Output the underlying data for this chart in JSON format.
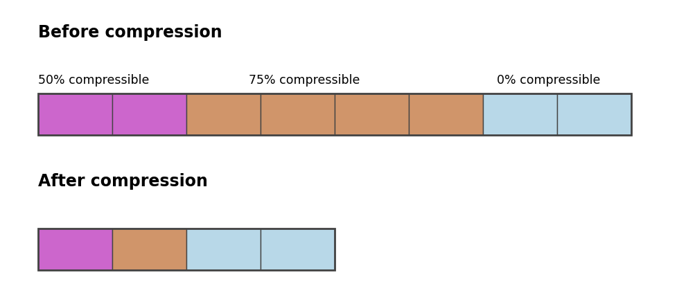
{
  "title_before": "Before compression",
  "title_after": "After compression",
  "label_50": "50% compressible",
  "label_75": "75% compressible",
  "label_0": "0% compressible",
  "color_purple": "#CC66CC",
  "color_orange": "#D0956A",
  "color_blue": "#B8D8E8",
  "edge_color": "#444444",
  "background_color": "#FFFFFF",
  "before_blocks": [
    "purple",
    "purple",
    "orange",
    "orange",
    "orange",
    "orange",
    "blue",
    "blue"
  ],
  "after_blocks": [
    "purple",
    "orange",
    "blue",
    "blue"
  ],
  "title_fontsize": 17,
  "label_fontsize": 12.5
}
